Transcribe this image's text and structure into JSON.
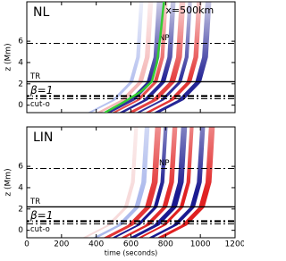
{
  "chart_data": [
    {
      "type": "line",
      "panel_label": "NL",
      "ylabel": "z (Mm)",
      "xlim": [
        0,
        1200
      ],
      "ylim": [
        -0.7,
        9.7
      ],
      "yticks": [
        0,
        2,
        4,
        6
      ],
      "levels": [
        {
          "name": "NP",
          "value": 5.8,
          "line_style": "dashdot",
          "width": 1
        },
        {
          "name": "TR",
          "value": 2.2,
          "line_style": "solid",
          "width": 1.3
        },
        {
          "name": "β=1",
          "value": 0.85,
          "line_style": "dashdot",
          "width": 2.2
        },
        {
          "name": "cut-o",
          "value": 0.6,
          "line_style": "dashdot",
          "width": 1
        }
      ],
      "series": [
        {
          "name": "x=500km",
          "color": "#33cc33",
          "x": [
            450,
            560,
            660,
            720,
            750,
            770,
            790
          ],
          "values": [
            -0.7,
            0.3,
            1.3,
            2.2,
            4,
            6.5,
            9.7
          ]
        }
      ]
    },
    {
      "type": "line",
      "panel_label": "LIN",
      "ylabel": "z (Mm)",
      "xlabel": "time (seconds)",
      "xlim": [
        0,
        1200
      ],
      "xticks": [
        0,
        200,
        400,
        600,
        800,
        1000,
        1200
      ],
      "ylim": [
        -0.7,
        9.7
      ],
      "yticks": [
        0,
        2,
        4,
        6
      ],
      "levels": [
        {
          "name": "NP",
          "value": 5.8,
          "line_style": "dashdot",
          "width": 1
        },
        {
          "name": "TR",
          "value": 2.2,
          "line_style": "solid",
          "width": 1.3
        },
        {
          "name": "β=1",
          "value": 0.85,
          "line_style": "dashdot",
          "width": 2.2
        },
        {
          "name": "cut-o",
          "value": 0.6,
          "line_style": "dashdot",
          "width": 1
        }
      ],
      "series": []
    }
  ]
}
